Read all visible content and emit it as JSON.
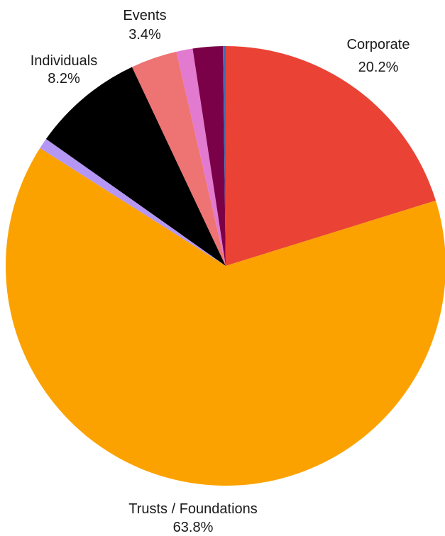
{
  "chart_data": {
    "type": "pie",
    "title": "",
    "slices": [
      {
        "name": "Corporate",
        "value": 20.2,
        "label": "20.2%",
        "color": "#ea4335"
      },
      {
        "name": "Trusts / Foundations",
        "value": 63.8,
        "label": "63.8%",
        "color": "#fba200"
      },
      {
        "name": "",
        "value": 0.8,
        "label": "",
        "color": "#b497f5"
      },
      {
        "name": "Individuals",
        "value": 8.2,
        "label": "8.2%",
        "color": "#000000"
      },
      {
        "name": "Events",
        "value": 3.4,
        "label": "3.4%",
        "color": "#ee7373"
      },
      {
        "name": "",
        "value": 1.2,
        "label": "",
        "color": "#e27ad0"
      },
      {
        "name": "",
        "value": 2.2,
        "label": "",
        "color": "#7a0047"
      },
      {
        "name": "",
        "value": 0.2,
        "label": "",
        "color": "#3a6fb4"
      }
    ]
  }
}
